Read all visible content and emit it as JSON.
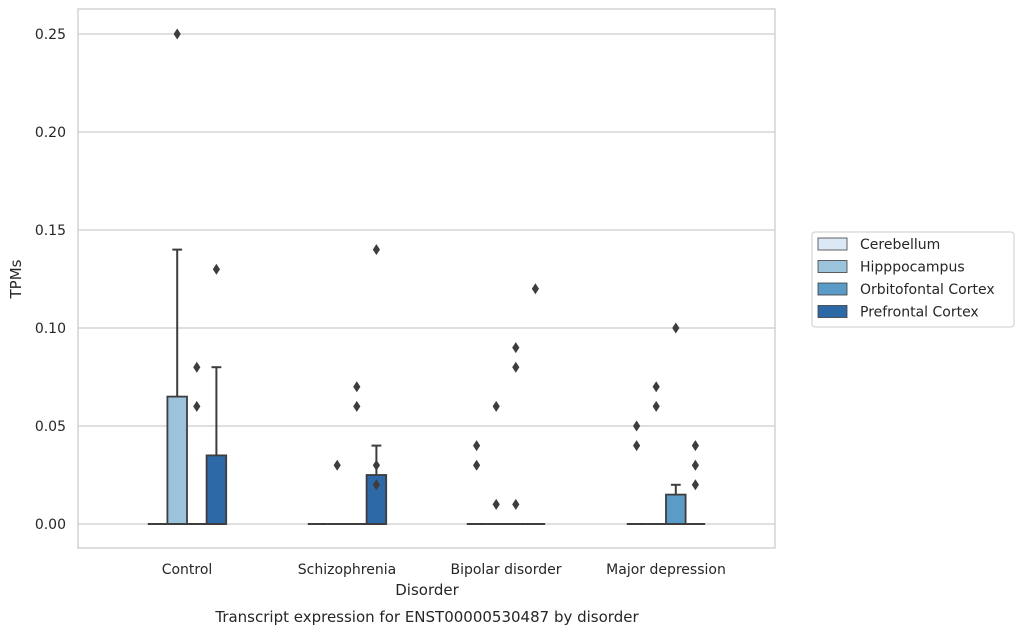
{
  "chart_data": {
    "type": "box",
    "caption": "Transcript expression for ENST00000530487 by disorder",
    "xlabel": "Disorder",
    "ylabel": "TPMs",
    "ylim": [
      -0.012,
      0.263
    ],
    "yticks": [
      "0.00",
      "0.05",
      "0.10",
      "0.15",
      "0.20",
      "0.25"
    ],
    "grid": true,
    "legend_position": "right",
    "categories": [
      "Control",
      "Schizophrenia",
      "Bipolar disorder",
      "Major depression"
    ],
    "series": [
      {
        "name": "Cerebellum",
        "color": "#dbe9f6",
        "boxes": [
          {
            "q1": 0,
            "median": 0,
            "q3": 0,
            "whisker_low": 0,
            "whisker_high": 0,
            "outliers": []
          },
          {
            "q1": 0,
            "median": 0,
            "q3": 0,
            "whisker_low": 0,
            "whisker_high": 0,
            "outliers": []
          },
          {
            "q1": 0,
            "median": 0,
            "q3": 0,
            "whisker_low": 0,
            "whisker_high": 0,
            "outliers": [
              0.03,
              0.04
            ]
          },
          {
            "q1": 0,
            "median": 0,
            "q3": 0,
            "whisker_low": 0,
            "whisker_high": 0,
            "outliers": [
              0.04,
              0.05
            ]
          }
        ]
      },
      {
        "name": "Hipppocampus",
        "color": "#9cc3dc",
        "boxes": [
          {
            "q1": 0,
            "median": 0,
            "q3": 0.065,
            "whisker_low": 0,
            "whisker_high": 0.14,
            "outliers": [
              0.25
            ]
          },
          {
            "q1": 0,
            "median": 0,
            "q3": 0,
            "whisker_low": 0,
            "whisker_high": 0,
            "outliers": [
              0.03
            ]
          },
          {
            "q1": 0,
            "median": 0,
            "q3": 0,
            "whisker_low": 0,
            "whisker_high": 0,
            "outliers": [
              0.01,
              0.06
            ]
          },
          {
            "q1": 0,
            "median": 0,
            "q3": 0,
            "whisker_low": 0,
            "whisker_high": 0,
            "outliers": [
              0.06,
              0.07
            ]
          }
        ]
      },
      {
        "name": "Orbitofontal Cortex",
        "color": "#5b9bc8",
        "boxes": [
          {
            "q1": 0,
            "median": 0,
            "q3": 0,
            "whisker_low": 0,
            "whisker_high": 0,
            "outliers": [
              0.06,
              0.08
            ]
          },
          {
            "q1": 0,
            "median": 0,
            "q3": 0,
            "whisker_low": 0,
            "whisker_high": 0,
            "outliers": [
              0.06,
              0.07
            ]
          },
          {
            "q1": 0,
            "median": 0,
            "q3": 0,
            "whisker_low": 0,
            "whisker_high": 0,
            "outliers": [
              0.01,
              0.08,
              0.09
            ]
          },
          {
            "q1": 0,
            "median": 0,
            "q3": 0.015,
            "whisker_low": 0,
            "whisker_high": 0.02,
            "outliers": [
              0.1
            ]
          }
        ]
      },
      {
        "name": "Prefrontal Cortex",
        "color": "#2c69a6",
        "boxes": [
          {
            "q1": 0,
            "median": 0,
            "q3": 0.035,
            "whisker_low": 0,
            "whisker_high": 0.08,
            "outliers": [
              0.13
            ]
          },
          {
            "q1": 0,
            "median": 0,
            "q3": 0.025,
            "whisker_low": 0,
            "whisker_high": 0.04,
            "outliers": [
              0.14,
              0.03,
              0.02
            ]
          },
          {
            "q1": 0,
            "median": 0,
            "q3": 0,
            "whisker_low": 0,
            "whisker_high": 0,
            "outliers": [
              0.12
            ]
          },
          {
            "q1": 0,
            "median": 0,
            "q3": 0,
            "whisker_low": 0,
            "whisker_high": 0,
            "outliers": [
              0.02,
              0.03,
              0.04
            ]
          }
        ]
      }
    ]
  }
}
